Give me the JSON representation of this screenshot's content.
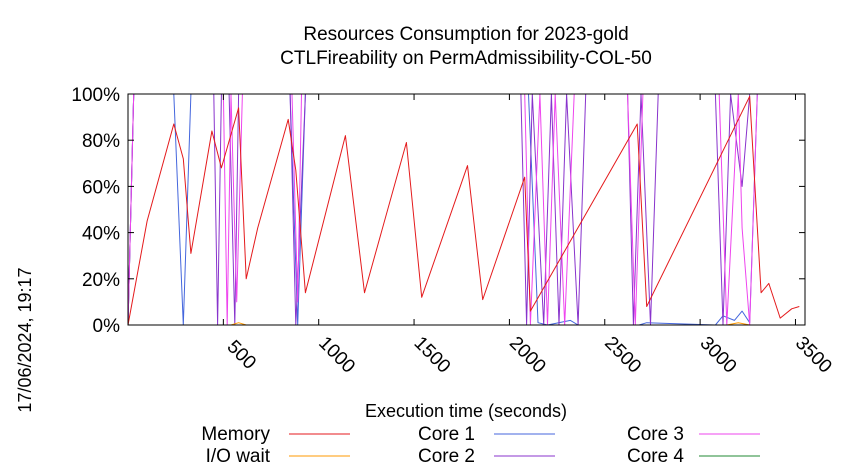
{
  "chart_data": {
    "type": "line",
    "title_line1": "Resources Consumption for 2023-gold",
    "title_line2": "CTLFireability on PermAdmissibility-COL-50",
    "xlabel": "Execution time (seconds)",
    "ylabel": "",
    "side_label": "17/06/2024, 19:17",
    "xlim": [
      0,
      3550
    ],
    "ylim": [
      0,
      100
    ],
    "x_ticks": [
      "500",
      "1000",
      "1500",
      "2000",
      "2500",
      "3000",
      "3500"
    ],
    "x_tick_values": [
      500,
      1000,
      1500,
      2000,
      2500,
      3000,
      3500
    ],
    "y_ticks": [
      "0%",
      "20%",
      "40%",
      "60%",
      "80%",
      "100%"
    ],
    "y_tick_values": [
      0,
      20,
      40,
      60,
      80,
      100
    ],
    "grid": false,
    "legend_position": "bottom",
    "series": [
      {
        "name": "Memory",
        "color": "#e41a1c",
        "points": [
          [
            0,
            0
          ],
          [
            100,
            45
          ],
          [
            240,
            87
          ],
          [
            290,
            72
          ],
          [
            330,
            31
          ],
          [
            440,
            84
          ],
          [
            490,
            68
          ],
          [
            580,
            94
          ],
          [
            620,
            20
          ],
          [
            680,
            42
          ],
          [
            840,
            89
          ],
          [
            880,
            67
          ],
          [
            930,
            14
          ],
          [
            1140,
            82
          ],
          [
            1240,
            14
          ],
          [
            1460,
            79
          ],
          [
            1540,
            12
          ],
          [
            1780,
            69
          ],
          [
            1860,
            11
          ],
          [
            2080,
            64
          ],
          [
            2110,
            6
          ],
          [
            2670,
            87
          ],
          [
            2720,
            8
          ],
          [
            3260,
            99
          ],
          [
            3320,
            14
          ],
          [
            3360,
            18
          ],
          [
            3420,
            3
          ],
          [
            3480,
            7
          ],
          [
            3520,
            8
          ]
        ]
      },
      {
        "name": "I/O wait",
        "color": "#ff9900",
        "points": [
          [
            0,
            0
          ],
          [
            540,
            0
          ],
          [
            580,
            1
          ],
          [
            620,
            0
          ],
          [
            3140,
            0
          ],
          [
            3200,
            1
          ],
          [
            3260,
            0
          ],
          [
            3520,
            0
          ]
        ]
      },
      {
        "name": "Core 1",
        "color": "#4466dd",
        "points": [
          [
            0,
            0
          ],
          [
            30,
            100
          ],
          [
            240,
            100
          ],
          [
            290,
            0
          ],
          [
            330,
            100
          ],
          [
            500,
            100
          ],
          [
            520,
            100
          ],
          [
            850,
            100
          ],
          [
            890,
            0
          ],
          [
            930,
            100
          ],
          [
            2100,
            100
          ],
          [
            2150,
            1
          ],
          [
            2200,
            0
          ],
          [
            2320,
            2
          ],
          [
            2360,
            0
          ],
          [
            2680,
            0
          ],
          [
            2720,
            1
          ],
          [
            3080,
            0
          ],
          [
            3120,
            4
          ],
          [
            3180,
            2
          ],
          [
            3220,
            6
          ],
          [
            3260,
            1
          ],
          [
            3300,
            100
          ],
          [
            3550,
            100
          ]
        ]
      },
      {
        "name": "Core 2",
        "color": "#8833cc",
        "points": [
          [
            0,
            0
          ],
          [
            30,
            100
          ],
          [
            450,
            100
          ],
          [
            470,
            0
          ],
          [
            490,
            100
          ],
          [
            530,
            100
          ],
          [
            560,
            0
          ],
          [
            580,
            100
          ],
          [
            850,
            100
          ],
          [
            880,
            0
          ],
          [
            930,
            100
          ],
          [
            2060,
            100
          ],
          [
            2090,
            0
          ],
          [
            2120,
            100
          ],
          [
            2180,
            0
          ],
          [
            2220,
            100
          ],
          [
            2260,
            0
          ],
          [
            2300,
            100
          ],
          [
            2360,
            0
          ],
          [
            2400,
            100
          ],
          [
            2620,
            100
          ],
          [
            2650,
            0
          ],
          [
            2690,
            100
          ],
          [
            2740,
            0
          ],
          [
            2780,
            100
          ],
          [
            3080,
            100
          ],
          [
            3120,
            0
          ],
          [
            3160,
            100
          ],
          [
            3220,
            60
          ],
          [
            3260,
            100
          ],
          [
            3300,
            100
          ],
          [
            3550,
            100
          ]
        ]
      },
      {
        "name": "Core 3",
        "color": "#ee44ee",
        "points": [
          [
            0,
            0
          ],
          [
            30,
            100
          ],
          [
            500,
            100
          ],
          [
            520,
            0
          ],
          [
            540,
            100
          ],
          [
            570,
            10
          ],
          [
            600,
            100
          ],
          [
            860,
            100
          ],
          [
            890,
            10
          ],
          [
            910,
            100
          ],
          [
            2080,
            100
          ],
          [
            2110,
            0
          ],
          [
            2160,
            100
          ],
          [
            2200,
            0
          ],
          [
            2240,
            100
          ],
          [
            2290,
            0
          ],
          [
            2340,
            100
          ],
          [
            2620,
            100
          ],
          [
            2660,
            0
          ],
          [
            2700,
            100
          ],
          [
            3100,
            100
          ],
          [
            3140,
            0
          ],
          [
            3200,
            100
          ],
          [
            3220,
            42
          ],
          [
            3260,
            0
          ],
          [
            3300,
            100
          ],
          [
            3550,
            100
          ]
        ]
      },
      {
        "name": "Core 4",
        "color": "#228833",
        "points": [
          [
            0,
            0
          ],
          [
            30,
            100
          ],
          [
            3550,
            100
          ]
        ]
      }
    ],
    "legend": [
      {
        "label": "Memory",
        "color": "#e41a1c"
      },
      {
        "label": "I/O wait",
        "color": "#ff9900"
      },
      {
        "label": "Core 1",
        "color": "#4466dd"
      },
      {
        "label": "Core 2",
        "color": "#8833cc"
      },
      {
        "label": "Core 3",
        "color": "#ee44ee"
      },
      {
        "label": "Core 4",
        "color": "#228833"
      }
    ]
  }
}
